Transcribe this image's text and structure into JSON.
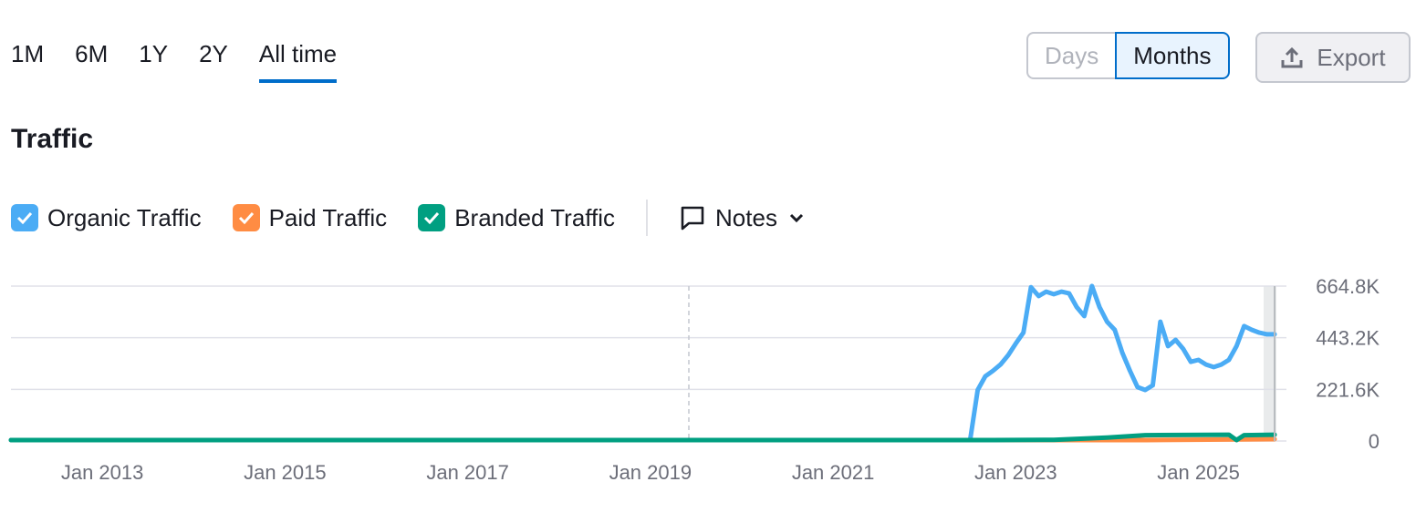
{
  "period_tabs": [
    "1M",
    "6M",
    "1Y",
    "2Y",
    "All time"
  ],
  "active_period": "All time",
  "granularity": {
    "days": "Days",
    "months": "Months",
    "selected": "Months"
  },
  "export_label": "Export",
  "section_title": "Traffic",
  "legend": [
    {
      "label": "Organic Traffic",
      "color": "#4bacf5",
      "checked": true
    },
    {
      "label": "Paid Traffic",
      "color": "#ff8c43",
      "checked": true
    },
    {
      "label": "Branded Traffic",
      "color": "#009f81",
      "checked": true
    }
  ],
  "notes_label": "Notes",
  "chart_data": {
    "type": "line",
    "x_start": "2012-01",
    "x_end": "2025-11",
    "x_ticks": [
      "Jan 2013",
      "Jan 2015",
      "Jan 2017",
      "Jan 2019",
      "Jan 2021",
      "Jan 2023",
      "Jan 2025"
    ],
    "y_ticks": [
      "0",
      "221.6K",
      "443.2K",
      "664.8K"
    ],
    "ylim": [
      0,
      664800
    ],
    "grid": true,
    "series": [
      {
        "name": "Organic Traffic",
        "color": "#4bacf5",
        "points": [
          [
            "2012-01",
            0
          ],
          [
            "2022-07",
            0
          ],
          [
            "2022-08",
            219000
          ],
          [
            "2022-09",
            278000
          ],
          [
            "2022-10",
            301000
          ],
          [
            "2022-11",
            328000
          ],
          [
            "2022-12",
            368000
          ],
          [
            "2023-01",
            418000
          ],
          [
            "2023-02",
            465000
          ],
          [
            "2023-03",
            660000
          ],
          [
            "2023-04",
            622000
          ],
          [
            "2023-05",
            641000
          ],
          [
            "2023-06",
            630000
          ],
          [
            "2023-07",
            641000
          ],
          [
            "2023-08",
            634000
          ],
          [
            "2023-09",
            575000
          ],
          [
            "2023-10",
            536000
          ],
          [
            "2023-11",
            665000
          ],
          [
            "2023-12",
            575000
          ],
          [
            "2024-01",
            512000
          ],
          [
            "2024-02",
            477000
          ],
          [
            "2024-03",
            379000
          ],
          [
            "2024-04",
            301000
          ],
          [
            "2024-05",
            231000
          ],
          [
            "2024-06",
            219000
          ],
          [
            "2024-07",
            239000
          ],
          [
            "2024-08",
            512000
          ],
          [
            "2024-09",
            407000
          ],
          [
            "2024-10",
            434000
          ],
          [
            "2024-11",
            395000
          ],
          [
            "2024-12",
            340000
          ],
          [
            "2025-01",
            348000
          ],
          [
            "2025-02",
            328000
          ],
          [
            "2025-03",
            317000
          ],
          [
            "2025-04",
            328000
          ],
          [
            "2025-05",
            348000
          ],
          [
            "2025-06",
            407000
          ],
          [
            "2025-07",
            493000
          ],
          [
            "2025-08",
            477000
          ],
          [
            "2025-09",
            465000
          ],
          [
            "2025-10",
            458000
          ],
          [
            "2025-11",
            458000
          ]
        ]
      },
      {
        "name": "Paid Traffic",
        "color": "#ff8c43",
        "points": [
          [
            "2012-01",
            0
          ],
          [
            "2023-06",
            0
          ],
          [
            "2024-06",
            4000
          ],
          [
            "2025-11",
            8000
          ]
        ]
      },
      {
        "name": "Branded Traffic",
        "color": "#009f81",
        "points": [
          [
            "2012-01",
            0
          ],
          [
            "2022-10",
            0
          ],
          [
            "2023-06",
            5000
          ],
          [
            "2024-01",
            15000
          ],
          [
            "2024-06",
            25000
          ],
          [
            "2025-05",
            27000
          ],
          [
            "2025-06",
            0
          ],
          [
            "2025-07",
            25000
          ],
          [
            "2025-11",
            27000
          ]
        ]
      }
    ]
  }
}
